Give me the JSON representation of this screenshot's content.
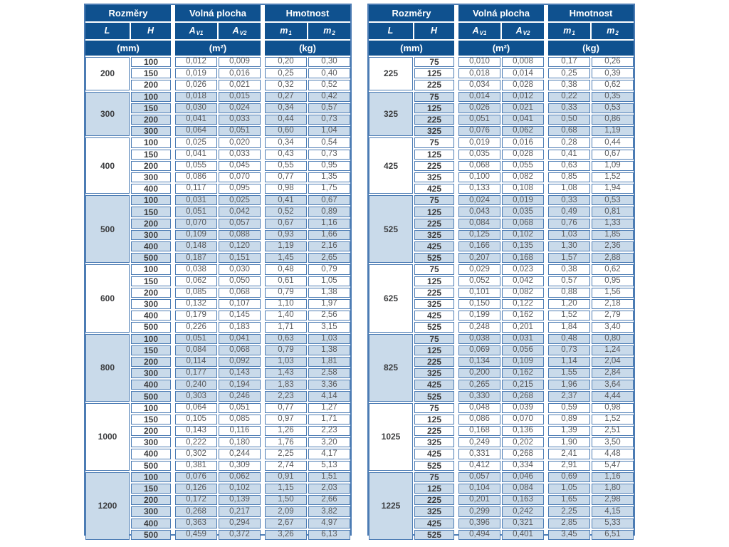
{
  "header": {
    "groups": [
      "Rozměry",
      "Volná plocha",
      "Hmotnost"
    ],
    "columns": [
      {
        "base": "L",
        "sub": ""
      },
      {
        "base": "H",
        "sub": ""
      },
      {
        "base": "A",
        "sub": "V1"
      },
      {
        "base": "A",
        "sub": "V2"
      },
      {
        "base": "m",
        "sub": "1"
      },
      {
        "base": "m",
        "sub": "2"
      }
    ],
    "units": [
      "(mm)",
      "(m²)",
      "(kg)"
    ]
  },
  "colors": {
    "header_bg": "#0f518f",
    "border": "#4c7cb4",
    "alt_row_bg": "#c9daea",
    "value_text": "#58595c",
    "label_text": "#3b3c3e"
  },
  "tables": [
    {
      "name": "left",
      "groups": [
        {
          "L": "200",
          "rows": [
            [
              "100",
              "0,012",
              "0,009",
              "0,20",
              "0,30"
            ],
            [
              "150",
              "0,019",
              "0,016",
              "0,25",
              "0,40"
            ],
            [
              "200",
              "0,026",
              "0,021",
              "0,32",
              "0,52"
            ]
          ]
        },
        {
          "L": "300",
          "rows": [
            [
              "100",
              "0,018",
              "0,015",
              "0,27",
              "0,42"
            ],
            [
              "150",
              "0,030",
              "0,024",
              "0,34",
              "0,57"
            ],
            [
              "200",
              "0,041",
              "0,033",
              "0,44",
              "0,73"
            ],
            [
              "300",
              "0,064",
              "0,051",
              "0,60",
              "1,04"
            ]
          ]
        },
        {
          "L": "400",
          "rows": [
            [
              "100",
              "0,025",
              "0,020",
              "0,34",
              "0,54"
            ],
            [
              "150",
              "0,041",
              "0,033",
              "0,43",
              "0,73"
            ],
            [
              "200",
              "0,055",
              "0,045",
              "0,55",
              "0,95"
            ],
            [
              "300",
              "0,086",
              "0,070",
              "0,77",
              "1,35"
            ],
            [
              "400",
              "0,117",
              "0,095",
              "0,98",
              "1,75"
            ]
          ]
        },
        {
          "L": "500",
          "rows": [
            [
              "100",
              "0,031",
              "0,025",
              "0,41",
              "0,67"
            ],
            [
              "150",
              "0,051",
              "0,042",
              "0,52",
              "0,89"
            ],
            [
              "200",
              "0,070",
              "0,057",
              "0,67",
              "1,16"
            ],
            [
              "300",
              "0,109",
              "0,088",
              "0,93",
              "1,66"
            ],
            [
              "400",
              "0,148",
              "0,120",
              "1,19",
              "2,16"
            ],
            [
              "500",
              "0,187",
              "0,151",
              "1,45",
              "2,65"
            ]
          ]
        },
        {
          "L": "600",
          "rows": [
            [
              "100",
              "0,038",
              "0,030",
              "0,48",
              "0,79"
            ],
            [
              "150",
              "0,062",
              "0,050",
              "0,61",
              "1,05"
            ],
            [
              "200",
              "0,085",
              "0,068",
              "0,79",
              "1,38"
            ],
            [
              "300",
              "0,132",
              "0,107",
              "1,10",
              "1,97"
            ],
            [
              "400",
              "0,179",
              "0,145",
              "1,40",
              "2,56"
            ],
            [
              "500",
              "0,226",
              "0,183",
              "1,71",
              "3,15"
            ]
          ]
        },
        {
          "L": "800",
          "rows": [
            [
              "100",
              "0,051",
              "0,041",
              "0,63",
              "1,03"
            ],
            [
              "150",
              "0,084",
              "0,068",
              "0,79",
              "1,38"
            ],
            [
              "200",
              "0,114",
              "0,092",
              "1,03",
              "1,81"
            ],
            [
              "300",
              "0,177",
              "0,143",
              "1,43",
              "2,58"
            ],
            [
              "400",
              "0,240",
              "0,194",
              "1,83",
              "3,36"
            ],
            [
              "500",
              "0,303",
              "0,246",
              "2,23",
              "4,14"
            ]
          ]
        },
        {
          "L": "1000",
          "rows": [
            [
              "100",
              "0,064",
              "0,051",
              "0,77",
              "1,27"
            ],
            [
              "150",
              "0,105",
              "0,085",
              "0,97",
              "1,71"
            ],
            [
              "200",
              "0,143",
              "0,116",
              "1,26",
              "2,23"
            ],
            [
              "300",
              "0,222",
              "0,180",
              "1,76",
              "3,20"
            ],
            [
              "400",
              "0,302",
              "0,244",
              "2,25",
              "4,17"
            ],
            [
              "500",
              "0,381",
              "0,309",
              "2,74",
              "5,13"
            ]
          ]
        },
        {
          "L": "1200",
          "rows": [
            [
              "100",
              "0,076",
              "0,062",
              "0,91",
              "1,51"
            ],
            [
              "150",
              "0,126",
              "0,102",
              "1,15",
              "2,03"
            ],
            [
              "200",
              "0,172",
              "0,139",
              "1,50",
              "2,66"
            ],
            [
              "300",
              "0,268",
              "0,217",
              "2,09",
              "3,82"
            ],
            [
              "400",
              "0,363",
              "0,294",
              "2,67",
              "4,97"
            ],
            [
              "500",
              "0,459",
              "0,372",
              "3,26",
              "6,13"
            ]
          ]
        }
      ]
    },
    {
      "name": "right",
      "groups": [
        {
          "L": "225",
          "rows": [
            [
              "75",
              "0,010",
              "0,008",
              "0,17",
              "0,26"
            ],
            [
              "125",
              "0,018",
              "0,014",
              "0,25",
              "0,39"
            ],
            [
              "225",
              "0,034",
              "0,028",
              "0,38",
              "0,62"
            ]
          ]
        },
        {
          "L": "325",
          "rows": [
            [
              "75",
              "0,014",
              "0,012",
              "0,22",
              "0,35"
            ],
            [
              "125",
              "0,026",
              "0,021",
              "0,33",
              "0,53"
            ],
            [
              "225",
              "0,051",
              "0,041",
              "0,50",
              "0,86"
            ],
            [
              "325",
              "0,076",
              "0,062",
              "0,68",
              "1,19"
            ]
          ]
        },
        {
          "L": "425",
          "rows": [
            [
              "75",
              "0,019",
              "0,016",
              "0,28",
              "0,44"
            ],
            [
              "125",
              "0,035",
              "0,028",
              "0,41",
              "0,67"
            ],
            [
              "225",
              "0,068",
              "0,055",
              "0,63",
              "1,09"
            ],
            [
              "325",
              "0,100",
              "0,082",
              "0,85",
              "1,52"
            ],
            [
              "425",
              "0,133",
              "0,108",
              "1,08",
              "1,94"
            ]
          ]
        },
        {
          "L": "525",
          "rows": [
            [
              "75",
              "0,024",
              "0,019",
              "0,33",
              "0,53"
            ],
            [
              "125",
              "0,043",
              "0,035",
              "0,49",
              "0,81"
            ],
            [
              "225",
              "0,084",
              "0,068",
              "0,76",
              "1,33"
            ],
            [
              "325",
              "0,125",
              "0,102",
              "1,03",
              "1,85"
            ],
            [
              "425",
              "0,166",
              "0,135",
              "1,30",
              "2,36"
            ],
            [
              "525",
              "0,207",
              "0,168",
              "1,57",
              "2,88"
            ]
          ]
        },
        {
          "L": "625",
          "rows": [
            [
              "75",
              "0,029",
              "0,023",
              "0,38",
              "0,62"
            ],
            [
              "125",
              "0,052",
              "0,042",
              "0,57",
              "0,95"
            ],
            [
              "225",
              "0,101",
              "0,082",
              "0,88",
              "1,56"
            ],
            [
              "325",
              "0,150",
              "0,122",
              "1,20",
              "2,18"
            ],
            [
              "425",
              "0,199",
              "0,162",
              "1,52",
              "2,79"
            ],
            [
              "525",
              "0,248",
              "0,201",
              "1,84",
              "3,40"
            ]
          ]
        },
        {
          "L": "825",
          "rows": [
            [
              "75",
              "0,038",
              "0,031",
              "0,48",
              "0,80"
            ],
            [
              "125",
              "0,069",
              "0,056",
              "0,73",
              "1,24"
            ],
            [
              "225",
              "0,134",
              "0,109",
              "1,14",
              "2,04"
            ],
            [
              "325",
              "0,200",
              "0,162",
              "1,55",
              "2,84"
            ],
            [
              "425",
              "0,265",
              "0,215",
              "1,96",
              "3,64"
            ],
            [
              "525",
              "0,330",
              "0,268",
              "2,37",
              "4,44"
            ]
          ]
        },
        {
          "L": "1025",
          "rows": [
            [
              "75",
              "0,048",
              "0,039",
              "0,59",
              "0,98"
            ],
            [
              "125",
              "0,086",
              "0,070",
              "0,89",
              "1,52"
            ],
            [
              "225",
              "0,168",
              "0,136",
              "1,39",
              "2,51"
            ],
            [
              "325",
              "0,249",
              "0,202",
              "1,90",
              "3,50"
            ],
            [
              "425",
              "0,331",
              "0,268",
              "2,41",
              "4,48"
            ],
            [
              "525",
              "0,412",
              "0,334",
              "2,91",
              "5,47"
            ]
          ]
        },
        {
          "L": "1225",
          "rows": [
            [
              "75",
              "0,057",
              "0,046",
              "0,69",
              "1,16"
            ],
            [
              "125",
              "0,104",
              "0,084",
              "1,05",
              "1,80"
            ],
            [
              "225",
              "0,201",
              "0,163",
              "1,65",
              "2,98"
            ],
            [
              "325",
              "0,299",
              "0,242",
              "2,25",
              "4,15"
            ],
            [
              "425",
              "0,396",
              "0,321",
              "2,85",
              "5,33"
            ],
            [
              "525",
              "0,494",
              "0,401",
              "3,45",
              "6,51"
            ]
          ]
        }
      ]
    }
  ]
}
